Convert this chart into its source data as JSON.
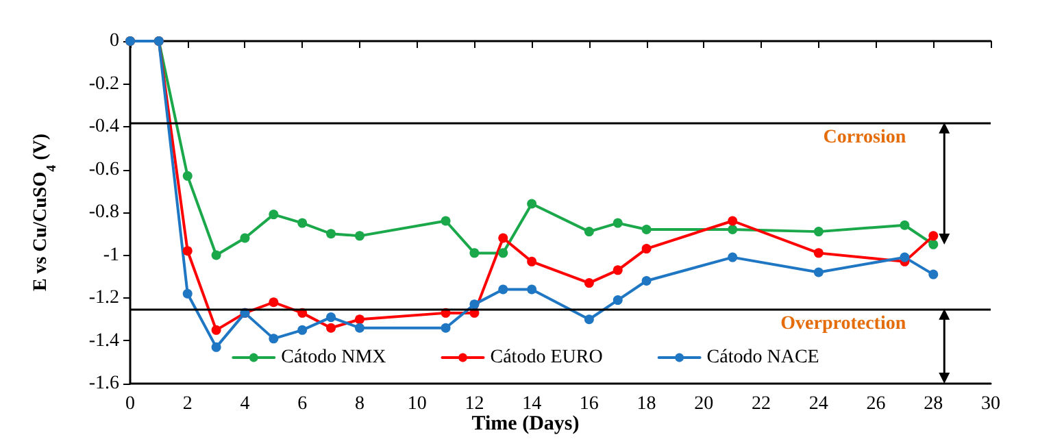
{
  "chart_data": {
    "type": "line",
    "xlabel": "Time (Days)",
    "ylabel": "E vs Cu/CuSO$_{4}$ (V)",
    "x": [
      0,
      1,
      2,
      3,
      4,
      5,
      6,
      7,
      8,
      11,
      12,
      13,
      14,
      16,
      17,
      18,
      21,
      24,
      27,
      28
    ],
    "xlim": [
      0,
      30
    ],
    "xticks": [
      0,
      2,
      4,
      6,
      8,
      10,
      12,
      14,
      16,
      18,
      20,
      22,
      24,
      26,
      28,
      30
    ],
    "ylim": [
      -1.6,
      0
    ],
    "yticks": [
      -1.6,
      -1.4,
      -1.2,
      -1,
      -0.8,
      -0.6,
      -0.4,
      -0.2,
      0
    ],
    "series": [
      {
        "name": "Cátodo NMX",
        "color": "#1aa84b",
        "values": [
          0,
          0,
          -0.63,
          -1.0,
          -0.92,
          -0.81,
          -0.85,
          -0.9,
          -0.91,
          -0.84,
          -0.99,
          -0.99,
          -0.76,
          -0.89,
          -0.85,
          -0.88,
          -0.88,
          -0.89,
          -0.86,
          -0.95
        ]
      },
      {
        "name": "Cátodo EURO",
        "color": "#ff0000",
        "values": [
          0,
          0,
          -0.98,
          -1.35,
          -1.27,
          -1.22,
          -1.27,
          -1.34,
          -1.3,
          -1.27,
          -1.27,
          -0.92,
          -1.03,
          -1.13,
          -1.07,
          -0.97,
          -0.84,
          -0.99,
          -1.03,
          -0.91
        ]
      },
      {
        "name": "Cátodo NACE",
        "color": "#1f77c4",
        "values": [
          0,
          0,
          -1.18,
          -1.43,
          -1.27,
          -1.39,
          -1.35,
          -1.29,
          -1.34,
          -1.34,
          -1.23,
          -1.16,
          -1.16,
          -1.3,
          -1.21,
          -1.12,
          -1.01,
          -1.08,
          -1.01,
          -1.09
        ]
      }
    ],
    "ref_lines": [
      {
        "axis": "y",
        "value": -0.38,
        "color": "#000000"
      },
      {
        "axis": "y",
        "value": -1.25,
        "color": "#000000"
      }
    ],
    "annotations": [
      "Corrosion",
      "Overprotection"
    ],
    "marker": "circle",
    "line_style": "solid",
    "grid": false,
    "legend": "bottom"
  }
}
